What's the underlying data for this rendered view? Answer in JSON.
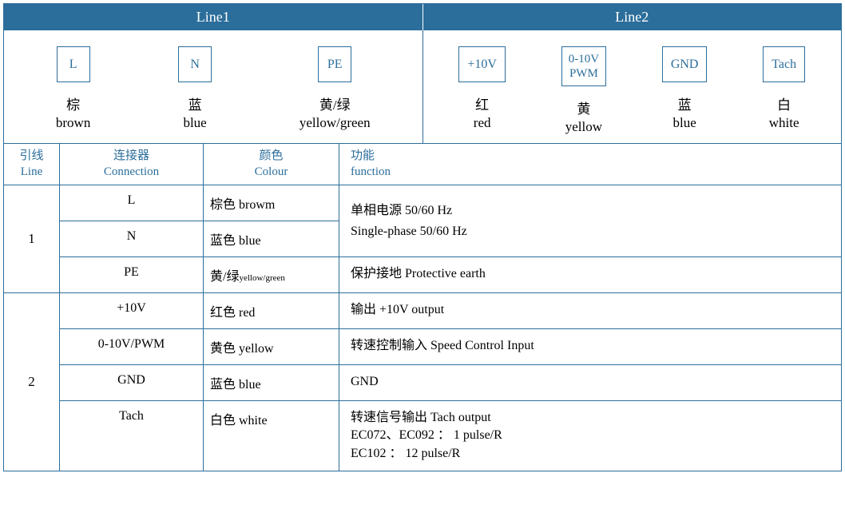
{
  "header": {
    "line1": "Line1",
    "line2": "Line2"
  },
  "colors": {
    "border": "#2c6e9b",
    "headerBg": "#2c6e9b",
    "headerText": "#ffffff",
    "textPrimary": "#000000",
    "textAccent": "#2c6e9b"
  },
  "terminals": {
    "line1": [
      {
        "box": "L",
        "cn": "棕",
        "en": "brown"
      },
      {
        "box": "N",
        "cn": "蓝",
        "en": "blue"
      },
      {
        "box": "PE",
        "cn": "黄/绿",
        "en": "yellow/green"
      }
    ],
    "line2": [
      {
        "box": "+10V",
        "cn": "红",
        "en": "red"
      },
      {
        "box": "0-10V\nPWM",
        "cn": "黄",
        "en": "yellow",
        "twoline": true
      },
      {
        "box": "GND",
        "cn": "蓝",
        "en": "blue"
      },
      {
        "box": "Tach",
        "cn": "白",
        "en": "white"
      }
    ]
  },
  "tableHeader": {
    "line": {
      "cn": "引线",
      "en": "Line"
    },
    "conn": {
      "cn": "连接器",
      "en": "Connection"
    },
    "colour": {
      "cn": "颜色",
      "en": "Colour"
    },
    "func": {
      "cn": "功能",
      "en": "function"
    }
  },
  "groups": [
    {
      "line": "1",
      "mergedFuncRows": 2,
      "rows": [
        {
          "conn": "L",
          "colour": "棕色 browm",
          "func_merge": true
        },
        {
          "conn": "N",
          "colour": "蓝色 blue",
          "func_merge": true
        },
        {
          "conn": "PE",
          "colour_html": "黄/绿<span class=\"small\">yellow/green</span>",
          "func": "保护接地 Protective earth"
        }
      ],
      "mergedFuncText": [
        "单相电源 50/60 Hz",
        "Single-phase 50/60 Hz"
      ]
    },
    {
      "line": "2",
      "rows": [
        {
          "conn": "+10V",
          "colour": "红色 red",
          "func": "输出 +10V output"
        },
        {
          "conn": "0-10V/PWM",
          "colour": "黄色 yellow",
          "func": "转速控制输入 Speed Control Input"
        },
        {
          "conn": "GND",
          "colour": "蓝色 blue",
          "func": "GND"
        },
        {
          "conn": "Tach",
          "colour": "白色 white",
          "func_lines": [
            "转速信号输出 Tach output",
            "EC072、EC092 ： 1 pulse/R",
            "EC102 ： 12 pulse/R"
          ]
        }
      ]
    }
  ]
}
